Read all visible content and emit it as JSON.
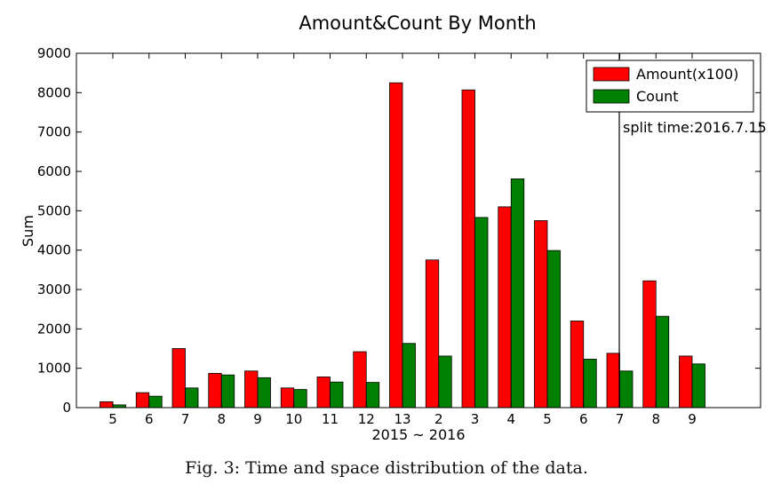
{
  "caption": "Fig. 3: Time and space distribution of the data.",
  "chart_data": {
    "type": "bar",
    "title": "Amount&Count By Month",
    "xlabel": "2015 ~ 2016",
    "ylabel": "Sum",
    "ylim": [
      0,
      9000
    ],
    "yticks": [
      0,
      1000,
      2000,
      3000,
      4000,
      5000,
      6000,
      7000,
      8000,
      9000
    ],
    "categories": [
      "5",
      "6",
      "7",
      "8",
      "9",
      "10",
      "11",
      "12",
      "13",
      "2",
      "3",
      "4",
      "5",
      "6",
      "7",
      "8",
      "9"
    ],
    "series": [
      {
        "name": "Amount(x100)",
        "color": "#ff0000",
        "values": [
          150,
          380,
          1500,
          870,
          930,
          500,
          780,
          1420,
          8250,
          3750,
          8070,
          5100,
          4750,
          2200,
          1380,
          3220,
          1310
        ]
      },
      {
        "name": "Count",
        "color": "#008000",
        "values": [
          70,
          290,
          500,
          830,
          760,
          460,
          650,
          640,
          1630,
          1310,
          4830,
          5810,
          3990,
          1230,
          930,
          2320,
          1110
        ]
      }
    ],
    "legend_position": "top-right",
    "annotation": {
      "type": "vertical-line",
      "x_category_index": 14,
      "label": "split time:2016.7.15"
    },
    "grid": false
  }
}
